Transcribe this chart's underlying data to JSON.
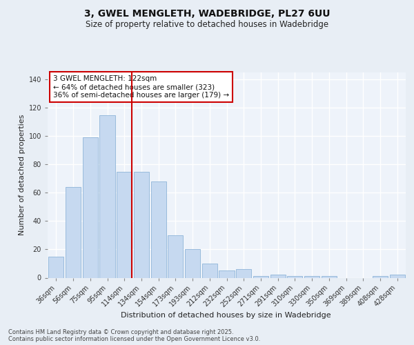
{
  "title_line1": "3, GWEL MENGLETH, WADEBRIDGE, PL27 6UU",
  "title_line2": "Size of property relative to detached houses in Wadebridge",
  "xlabel": "Distribution of detached houses by size in Wadebridge",
  "ylabel": "Number of detached properties",
  "bar_labels": [
    "36sqm",
    "56sqm",
    "75sqm",
    "95sqm",
    "114sqm",
    "134sqm",
    "154sqm",
    "173sqm",
    "193sqm",
    "212sqm",
    "232sqm",
    "252sqm",
    "271sqm",
    "291sqm",
    "310sqm",
    "330sqm",
    "350sqm",
    "369sqm",
    "389sqm",
    "408sqm",
    "428sqm"
  ],
  "bar_heights": [
    15,
    64,
    99,
    115,
    75,
    75,
    68,
    30,
    20,
    10,
    5,
    6,
    1,
    2,
    1,
    1,
    1,
    0,
    0,
    1,
    2
  ],
  "bar_color": "#c6d9f0",
  "bar_edgecolor": "#8eb4d8",
  "vline_color": "#cc0000",
  "vline_pos": 4.42,
  "annotation_text": "3 GWEL MENGLETH: 122sqm\n← 64% of detached houses are smaller (323)\n36% of semi-detached houses are larger (179) →",
  "annotation_box_edgecolor": "#cc0000",
  "annotation_box_facecolor": "#ffffff",
  "ylim": [
    0,
    145
  ],
  "yticks": [
    0,
    20,
    40,
    60,
    80,
    100,
    120,
    140
  ],
  "footer_text": "Contains HM Land Registry data © Crown copyright and database right 2025.\nContains public sector information licensed under the Open Government Licence v3.0.",
  "bg_color": "#e8eef5",
  "plot_bg_color": "#eef3fa",
  "grid_color": "#ffffff",
  "title_fontsize": 10,
  "subtitle_fontsize": 8.5,
  "axis_label_fontsize": 8,
  "tick_fontsize": 7,
  "annotation_fontsize": 7.5,
  "footer_fontsize": 6
}
